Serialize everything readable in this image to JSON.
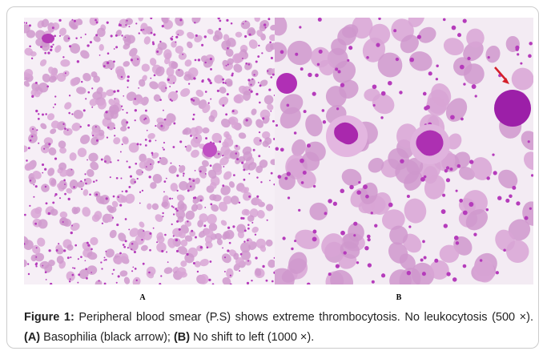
{
  "figure": {
    "panels": [
      {
        "label": "A"
      },
      {
        "label": "B"
      }
    ],
    "caption": {
      "label": "Figure 1:",
      "text1": " Peripheral blood smear (P.S) shows extreme thrombocytosis. No leukocytosis (500 ×). ",
      "a_label": "(A)",
      "text2": " Basophilia (black arrow); ",
      "b_label": "(B)",
      "text3": " No shift to left (1000 ×)."
    }
  }
}
